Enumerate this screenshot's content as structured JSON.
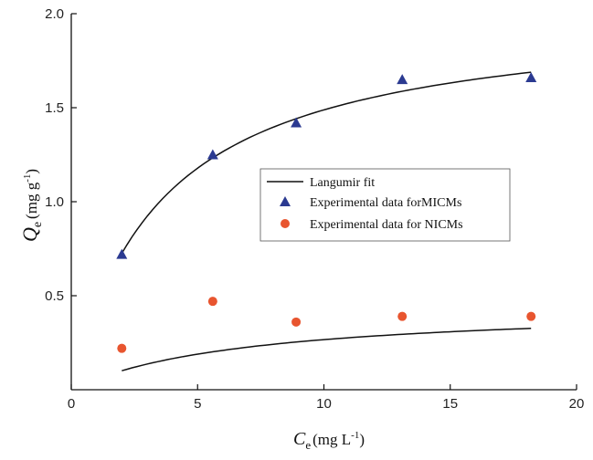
{
  "chart_data": {
    "type": "scatter",
    "xlabel": {
      "symbol": "C",
      "subscript": "e",
      "unit_open": "(mg L",
      "unit_sup": "-1",
      "unit_close": ")"
    },
    "ylabel": {
      "symbol": "Q",
      "subscript": "e",
      "unit_open": "(mg g",
      "unit_sup": "-1",
      "unit_close": ")"
    },
    "xlim": [
      0,
      20
    ],
    "ylim": [
      0,
      2.0
    ],
    "xticks": [
      0,
      5,
      10,
      15,
      20
    ],
    "yticks": [
      0.5,
      1.0,
      1.5,
      2.0
    ],
    "xtick_labels": [
      "0",
      "5",
      "10",
      "15",
      "20"
    ],
    "ytick_labels": [
      "0.5",
      "1.0",
      "1.5",
      "2.0"
    ],
    "legend_position": "center-right",
    "grid": false,
    "series": [
      {
        "name": "Experimental data forMICMs",
        "kind": "scatter",
        "marker": "triangle",
        "color": "#2b3a91",
        "x": [
          2.0,
          5.6,
          8.9,
          13.1,
          18.2
        ],
        "y": [
          0.72,
          1.25,
          1.42,
          1.65,
          1.66
        ]
      },
      {
        "name": "Experimental data for NICMs",
        "kind": "scatter",
        "marker": "circle",
        "color": "#e8552f",
        "x": [
          2.0,
          5.6,
          8.9,
          13.1,
          18.2
        ],
        "y": [
          0.22,
          0.47,
          0.36,
          0.39,
          0.39
        ]
      },
      {
        "name": "Langumir fit",
        "kind": "line",
        "color": "#111111",
        "curves": [
          {
            "qmax": 2.02,
            "kl": 0.28,
            "x_start": 2.0,
            "x_end": 18.2
          },
          {
            "qmax": 0.45,
            "kl": 0.145,
            "x_start": 2.0,
            "x_end": 18.2
          }
        ]
      }
    ],
    "legend": [
      "Langumir fit",
      "Experimental data forMICMs",
      "Experimental data for NICMs"
    ]
  }
}
